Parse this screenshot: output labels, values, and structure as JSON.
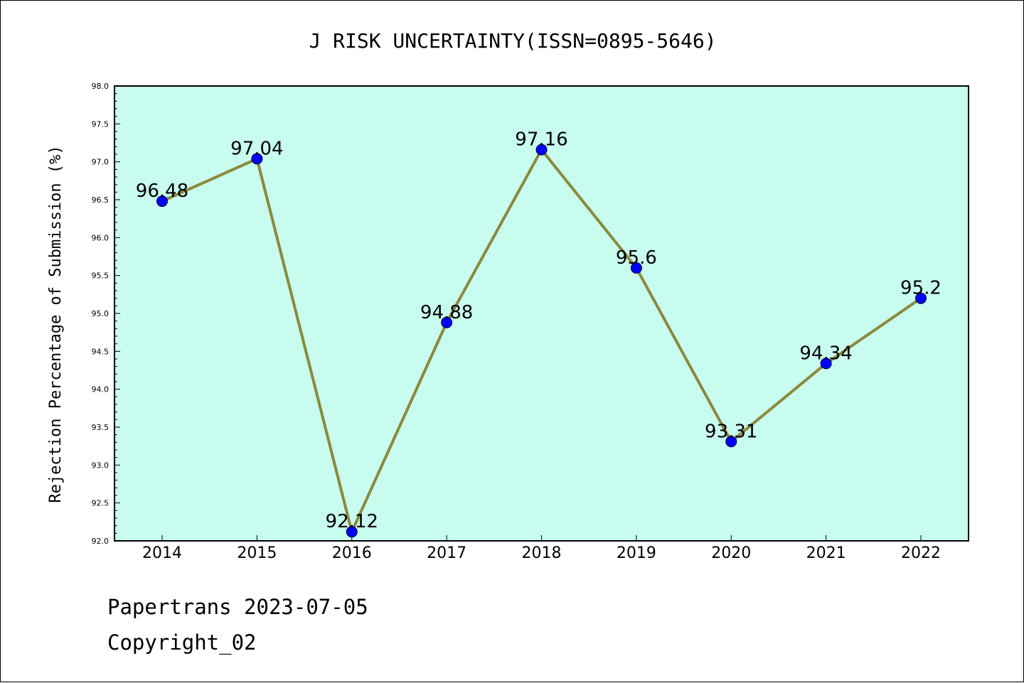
{
  "chart_data": {
    "type": "line",
    "title": "J RISK UNCERTAINTY(ISSN=0895-5646)",
    "xlabel": "",
    "ylabel": "Rejection Percentage of Submission (%)",
    "categories": [
      "2014",
      "2015",
      "2016",
      "2017",
      "2018",
      "2019",
      "2020",
      "2021",
      "2022"
    ],
    "series": [
      {
        "values": [
          96.48,
          97.04,
          92.12,
          94.88,
          97.16,
          95.6,
          93.31,
          94.34,
          95.2
        ],
        "labels": [
          "96.48",
          "97.04",
          "92.12",
          "94.88",
          "97.16",
          "95.6",
          "93.31",
          "94.34",
          "95.2"
        ]
      }
    ],
    "ylim": [
      92.0,
      98.0
    ],
    "yticks": [
      "92.0",
      "92.5",
      "93.0",
      "93.5",
      "94.0",
      "94.5",
      "95.0",
      "95.5",
      "96.0",
      "96.5",
      "97.0",
      "97.5",
      "98.0"
    ],
    "grid": false,
    "legend": "none",
    "colors": {
      "plot_background": "#c8fcee",
      "line": "#8b8a3c",
      "marker": "#0000ff"
    }
  },
  "footer": {
    "date_text": "Papertrans 2023-07-05",
    "copyright_text": "Copyright_02"
  }
}
